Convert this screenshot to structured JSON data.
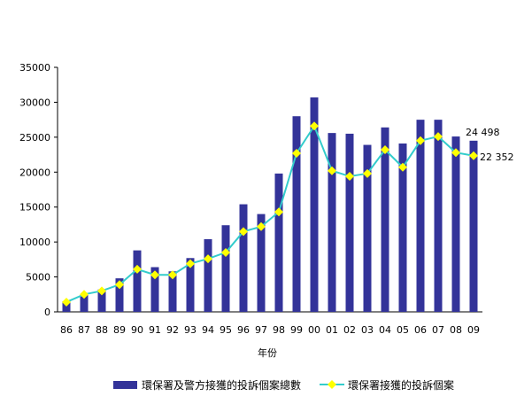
{
  "chart_data": {
    "type": "bar",
    "title": "",
    "xlabel": "年份",
    "ylabel": "",
    "ylim": [
      0,
      35000
    ],
    "yticks": [
      0,
      5000,
      10000,
      15000,
      20000,
      25000,
      30000,
      35000
    ],
    "grid": false,
    "legend_position": "bottom",
    "categories": [
      "86",
      "87",
      "88",
      "89",
      "90",
      "91",
      "92",
      "93",
      "94",
      "95",
      "96",
      "97",
      "98",
      "99",
      "00",
      "01",
      "02",
      "03",
      "04",
      "05",
      "06",
      "07",
      "08",
      "09"
    ],
    "series": [
      {
        "name": "環保署及警方接獲的投訴個案總數",
        "type": "bar",
        "color": "#333399",
        "values": [
          1500,
          2400,
          3200,
          4800,
          8800,
          6400,
          5800,
          7700,
          10400,
          12400,
          15400,
          14000,
          19800,
          28000,
          30700,
          25600,
          25500,
          23900,
          26400,
          24100,
          27500,
          27500,
          25100,
          24498
        ]
      },
      {
        "name": "環保署接獲的投訴個案",
        "type": "line",
        "color": "#33CCCC",
        "marker_color": "#FFFF00",
        "values": [
          1400,
          2500,
          3000,
          3900,
          6100,
          5300,
          5300,
          6900,
          7600,
          8500,
          11500,
          12200,
          14300,
          22700,
          26600,
          20200,
          19400,
          19800,
          23200,
          20700,
          24500,
          25100,
          22800,
          22352
        ]
      }
    ],
    "annotations": [
      "24 498",
      "22 352"
    ]
  }
}
